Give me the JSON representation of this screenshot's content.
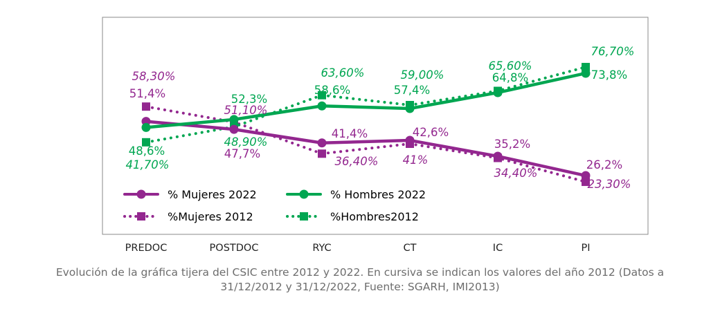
{
  "chart_data": {
    "type": "line",
    "categories": [
      "PREDOC",
      "POSTDOC",
      "RYC",
      "CT",
      "IC",
      "PI"
    ],
    "ylim": [
      0,
      100
    ],
    "grid": false,
    "legend_position": "bottom-left",
    "series": [
      {
        "name": "% Mujeres 2022",
        "values": [
          51.4,
          47.7,
          41.4,
          42.6,
          35.2,
          26.2
        ],
        "labels": [
          "51,4%",
          "47,7%",
          "41,4%",
          "42,6%",
          "35,2%",
          "26,2%"
        ],
        "color": "#93278F",
        "style": "solid",
        "marker": "circle"
      },
      {
        "name": "% Hombres 2022",
        "values": [
          48.6,
          52.3,
          58.6,
          57.4,
          64.8,
          73.8
        ],
        "labels": [
          "48,6%",
          "52,3%",
          "58,6%",
          "57,4%",
          "64,8%",
          "73,8%"
        ],
        "color": "#00A651",
        "style": "solid",
        "marker": "circle"
      },
      {
        "name": "%Mujeres 2012",
        "values": [
          58.3,
          51.1,
          36.4,
          41.0,
          34.4,
          23.3
        ],
        "labels": [
          "58,30%",
          "51,10%",
          "36,40%",
          "41%",
          "34,40%",
          "23,30%"
        ],
        "color": "#93278F",
        "style": "dotted",
        "marker": "square"
      },
      {
        "name": "%Hombres2012",
        "values": [
          41.7,
          48.9,
          63.6,
          59.0,
          65.6,
          76.7
        ],
        "labels": [
          "41,70%",
          "48,90%",
          "63,60%",
          "59,00%",
          "65,60%",
          "76,70%"
        ],
        "color": "#00A651",
        "style": "dotted",
        "marker": "square"
      }
    ]
  },
  "caption": {
    "line1": "Evolución de la gráfica tijera del CSIC entre 2012 y 2022. En cursiva se indican los valores del año 2012 (Datos a",
    "line2": "31/12/2012 y 31/12/2022, Fuente: SGARH, IMI2013)"
  }
}
